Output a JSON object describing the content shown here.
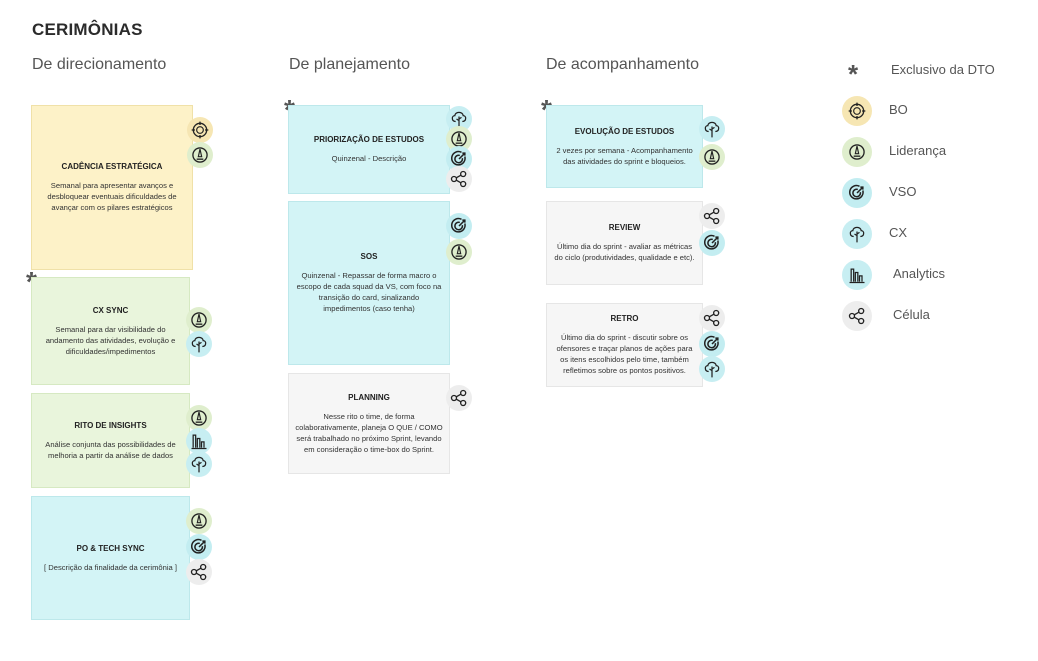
{
  "title": "CERIMÔNIAS",
  "columns": [
    {
      "heading": "De direcionamento"
    },
    {
      "heading": "De planejamento"
    },
    {
      "heading": "De acompanhamento"
    }
  ],
  "cards": {
    "cadencia": {
      "title": "CADÊNCIA ESTRATÉGICA",
      "desc": "Semanal para apresentar avanços e desbloquear eventuais dificuldades de avançar com os pilares estratégicos"
    },
    "cxsync": {
      "title": "CX SYNC",
      "desc": "Semanal para dar visibilidade do andamento das atividades, evolução e dificuldades/impedimentos"
    },
    "insights": {
      "title": "RITO DE INSIGHTS",
      "desc": "Análise conjunta das possibilidades de melhoria a partir da análise de dados"
    },
    "potech": {
      "title": "PO & TECH SYNC",
      "desc": "[ Descrição da finalidade da cerimônia ]"
    },
    "priorizacao": {
      "title": "PRIORIZAÇÃO DE ESTUDOS",
      "desc": "Quinzenal - Descrição"
    },
    "sos": {
      "title": "SOS",
      "desc": "Quinzenal - Repassar de forma macro o escopo de cada squad da VS, com foco na transição do card, sinalizando impedimentos (caso tenha)"
    },
    "planning": {
      "title": "PLANNING",
      "desc": "Nesse rito o time, de forma colaborativamente, planeja O QUE / COMO será trabalhado no próximo Sprint, levando em consideração o time-box do Sprint."
    },
    "evolucao": {
      "title": "EVOLUÇÃO DE ESTUDOS",
      "desc": "2 vezes por semana - Acompanhamento das atividades do sprint e bloqueios."
    },
    "review": {
      "title": "REVIEW",
      "desc": "Último dia do sprint - avaliar as métricas do ciclo (produtividades, qualidade e etc)."
    },
    "retro": {
      "title": "RETRO",
      "desc": "Último dia do sprint - discutir sobre os ofensores e traçar planos de ações para os itens escolhidos pelo time, também refletimos sobre os pontos positivos."
    }
  },
  "legend": {
    "exclusivo": "Exclusivo da DTO",
    "bo": "BO",
    "lideranca": "Liderança",
    "vso": "VSO",
    "cx": "CX",
    "analytics": "Analytics",
    "celula": "Célula"
  },
  "colors": {
    "yellow": "#fdf2c8",
    "green": "#e9f5dc",
    "cyan": "#d3f4f6",
    "gray": "#f6f6f6"
  }
}
